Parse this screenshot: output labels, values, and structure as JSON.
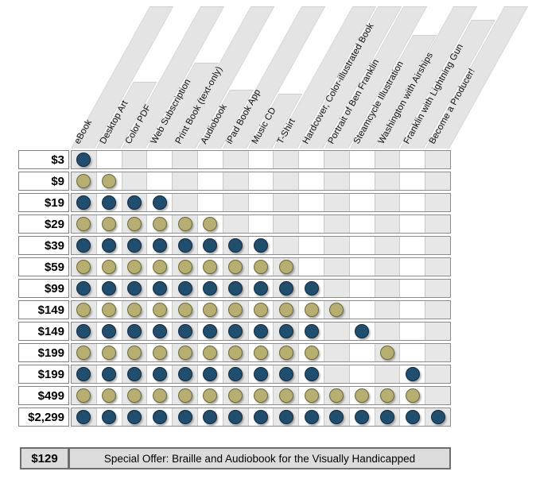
{
  "chart_data": {
    "type": "table",
    "title": "",
    "columns": [
      "eBook",
      "Desktop Art",
      "Color PDF",
      "Web Subscription",
      "Print Book (text-only)",
      "Audiobook",
      "iPad Book App",
      "Music CD",
      "T-Shirt",
      "Hardcover, Color-illustrated Book",
      "Portrait of Ben Franklin",
      "Steamcycle Illustration",
      "Washington with Airships",
      "Franklin with Lightning Gun",
      "Become a Producer!"
    ],
    "rows": [
      {
        "price": "$3",
        "dot_color": "blue",
        "included_columns": [
          1
        ]
      },
      {
        "price": "$9",
        "dot_color": "tan",
        "included_columns": [
          1,
          2
        ]
      },
      {
        "price": "$19",
        "dot_color": "blue",
        "included_columns": [
          1,
          2,
          3,
          4
        ]
      },
      {
        "price": "$29",
        "dot_color": "tan",
        "included_columns": [
          1,
          2,
          3,
          4,
          5,
          6
        ]
      },
      {
        "price": "$39",
        "dot_color": "blue",
        "included_columns": [
          1,
          2,
          3,
          4,
          5,
          6,
          7,
          8
        ]
      },
      {
        "price": "$59",
        "dot_color": "tan",
        "included_columns": [
          1,
          2,
          3,
          4,
          5,
          6,
          7,
          8,
          9
        ]
      },
      {
        "price": "$99",
        "dot_color": "blue",
        "included_columns": [
          1,
          2,
          3,
          4,
          5,
          6,
          7,
          8,
          9,
          10
        ]
      },
      {
        "price": "$149",
        "dot_color": "tan",
        "included_columns": [
          1,
          2,
          3,
          4,
          5,
          6,
          7,
          8,
          9,
          10,
          11
        ]
      },
      {
        "price": "$149",
        "dot_color": "blue",
        "included_columns": [
          1,
          2,
          3,
          4,
          5,
          6,
          7,
          8,
          9,
          10,
          12
        ]
      },
      {
        "price": "$199",
        "dot_color": "tan",
        "included_columns": [
          1,
          2,
          3,
          4,
          5,
          6,
          7,
          8,
          9,
          10,
          13
        ]
      },
      {
        "price": "$199",
        "dot_color": "blue",
        "included_columns": [
          1,
          2,
          3,
          4,
          5,
          6,
          7,
          8,
          9,
          10,
          14
        ]
      },
      {
        "price": "$499",
        "dot_color": "tan",
        "included_columns": [
          1,
          2,
          3,
          4,
          5,
          6,
          7,
          8,
          9,
          10,
          11,
          12,
          13,
          14
        ]
      },
      {
        "price": "$2,299",
        "dot_color": "blue",
        "included_columns": [
          1,
          2,
          3,
          4,
          5,
          6,
          7,
          8,
          9,
          10,
          11,
          12,
          13,
          14,
          15
        ]
      }
    ],
    "legend_position": "none",
    "grid": true
  },
  "special_offer": {
    "price": "$129",
    "label": "Special Offer: Braille and Audiobook for the Visually Handicapped"
  },
  "colors": {
    "dot_blue": "#1f4e6e",
    "dot_tan": "#b7ae71",
    "column_stripe": "#e7e7e7",
    "ribbon": "#e4e4e4",
    "row_border": "#7f7f7f",
    "offer_fill": "#dcdcdc"
  }
}
